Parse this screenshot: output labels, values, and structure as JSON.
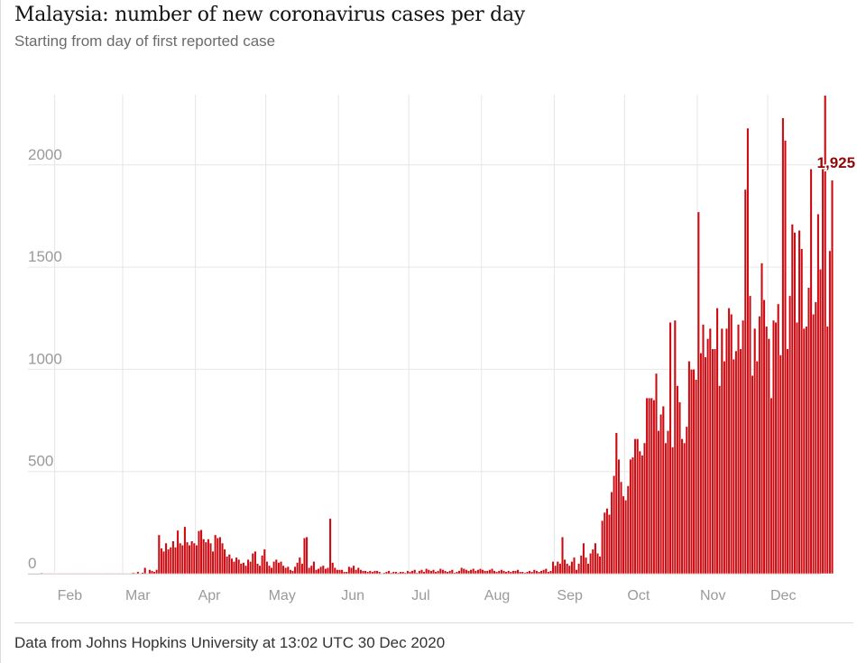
{
  "header": {
    "title": "Malaysia: number of new coronavirus cases per day",
    "subtitle": "Starting from day of first reported case"
  },
  "footer": {
    "source": "Data from Johns Hopkins University at 13:02 UTC 30 Dec 2020"
  },
  "colors": {
    "bar": "#cc0a11",
    "bar_stroke": "#ffffff",
    "grid": "#e6e6e6",
    "axis_text": "#9a9a9a",
    "highlight_text": "#8e0a0a"
  },
  "chart_data": {
    "type": "bar",
    "title": "Malaysia: number of new coronavirus cases per day",
    "subtitle": "Starting from day of first reported case",
    "xlabel": "",
    "ylabel": "",
    "ylim": [
      0,
      2300
    ],
    "yticks": [
      0,
      500,
      1000,
      1500,
      2000
    ],
    "ytick_labels": [
      "0",
      "500",
      "1000",
      "1500",
      "2000"
    ],
    "month_labels": [
      "Feb",
      "Mar",
      "Apr",
      "May",
      "Jun",
      "Jul",
      "Aug",
      "Sep",
      "Oct",
      "Nov",
      "Dec"
    ],
    "month_start_day_index": [
      6,
      35,
      66,
      96,
      127,
      157,
      188,
      219,
      249,
      280,
      310
    ],
    "start_date": "2020-01-26",
    "end_date": "2020-12-29",
    "annotation": {
      "label": "1,925",
      "day_index": 338,
      "value": 1925
    },
    "values": [
      4,
      0,
      0,
      0,
      1,
      2,
      0,
      0,
      0,
      0,
      0,
      0,
      0,
      2,
      0,
      0,
      2,
      1,
      0,
      0,
      1,
      0,
      0,
      0,
      0,
      0,
      0,
      0,
      0,
      0,
      0,
      0,
      0,
      0,
      0,
      0,
      0,
      0,
      1,
      5,
      3,
      10,
      2,
      6,
      30,
      1,
      20,
      15,
      10,
      20,
      190,
      125,
      110,
      150,
      120,
      130,
      160,
      130,
      212,
      150,
      140,
      230,
      155,
      140,
      160,
      150,
      140,
      210,
      215,
      170,
      155,
      170,
      150,
      110,
      190,
      175,
      180,
      150,
      120,
      85,
      95,
      75,
      60,
      80,
      70,
      50,
      55,
      40,
      70,
      60,
      100,
      110,
      50,
      40,
      90,
      120,
      60,
      40,
      30,
      60,
      70,
      55,
      60,
      40,
      30,
      35,
      20,
      15,
      35,
      55,
      80,
      50,
      175,
      180,
      30,
      40,
      60,
      20,
      25,
      35,
      40,
      25,
      30,
      270,
      55,
      30,
      20,
      20,
      20,
      10,
      10,
      35,
      30,
      40,
      20,
      30,
      20,
      15,
      15,
      10,
      15,
      10,
      15,
      15,
      10,
      0,
      5,
      10,
      15,
      5,
      10,
      10,
      5,
      10,
      10,
      5,
      15,
      10,
      15,
      20,
      5,
      15,
      20,
      10,
      25,
      20,
      15,
      20,
      10,
      15,
      25,
      20,
      15,
      10,
      15,
      20,
      5,
      10,
      15,
      30,
      25,
      20,
      15,
      20,
      25,
      15,
      20,
      25,
      20,
      15,
      15,
      20,
      25,
      15,
      10,
      15,
      20,
      15,
      10,
      15,
      10,
      15,
      15,
      20,
      10,
      10,
      5,
      10,
      15,
      10,
      20,
      15,
      10,
      15,
      20,
      25,
      10,
      15,
      60,
      40,
      60,
      50,
      180,
      70,
      50,
      40,
      60,
      80,
      20,
      50,
      90,
      150,
      80,
      50,
      100,
      120,
      150,
      100,
      85,
      260,
      300,
      320,
      290,
      400,
      480,
      690,
      560,
      450,
      380,
      360,
      430,
      560,
      570,
      660,
      660,
      600,
      580,
      640,
      860,
      860,
      860,
      850,
      980,
      700,
      780,
      820,
      640,
      700,
      1230,
      620,
      1240,
      920,
      840,
      660,
      640,
      720,
      1040,
      1000,
      1000,
      950,
      1770,
      1080,
      1220,
      1060,
      1150,
      1200,
      1100,
      1100,
      1300,
      920,
      1200,
      1040,
      1200,
      1300,
      1270,
      1050,
      1090,
      1220,
      1100,
      1240,
      1880,
      2180,
      1360,
      970,
      1200,
      1040,
      1260,
      1520,
      1340,
      1210,
      1150,
      860,
      1240,
      1230,
      1320,
      1070,
      2230,
      2120,
      1100,
      1360,
      1710,
      1670,
      1230,
      1680,
      1590,
      1200,
      1210,
      1400,
      1980,
      1270,
      1330,
      1760,
      1490,
      2040,
      2340,
      1210,
      1580,
      1925
    ]
  }
}
